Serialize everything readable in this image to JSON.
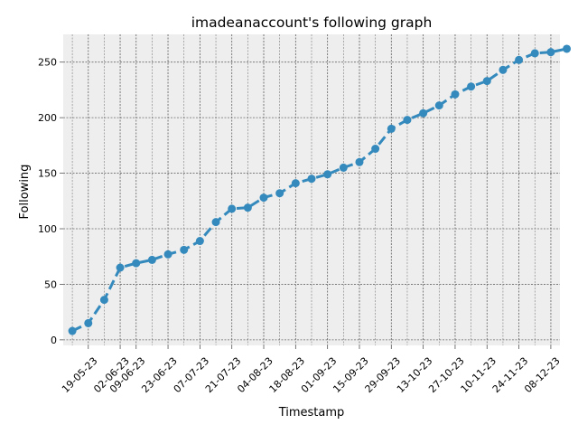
{
  "chart_data": {
    "type": "line",
    "title": "imadeanaccount's following graph",
    "xlabel": "Timestamp",
    "ylabel": "Following",
    "grid": true,
    "x_tick_labels": [
      "19-05-23",
      "02-06-23",
      "09-06-23",
      "23-06-23",
      "07-07-23",
      "21-07-23",
      "04-08-23",
      "18-08-23",
      "01-09-23",
      "15-09-23",
      "29-09-23",
      "13-10-23",
      "27-10-23",
      "10-11-23",
      "24-11-23",
      "08-12-23"
    ],
    "y_ticks": [
      0,
      50,
      100,
      150,
      200,
      250
    ],
    "xlim": [
      "2023-05-08",
      "2023-12-12"
    ],
    "ylim": [
      -5,
      275
    ],
    "series": [
      {
        "color": "#348abd",
        "line_style": "dashed",
        "marker": "circle",
        "points": [
          {
            "x": "2023-05-12",
            "y": 8
          },
          {
            "x": "2023-05-19",
            "y": 15
          },
          {
            "x": "2023-05-26",
            "y": 36
          },
          {
            "x": "2023-06-02",
            "y": 65
          },
          {
            "x": "2023-06-09",
            "y": 69
          },
          {
            "x": "2023-06-16",
            "y": 72
          },
          {
            "x": "2023-06-23",
            "y": 77
          },
          {
            "x": "2023-06-30",
            "y": 81
          },
          {
            "x": "2023-07-07",
            "y": 89
          },
          {
            "x": "2023-07-14",
            "y": 106
          },
          {
            "x": "2023-07-21",
            "y": 118
          },
          {
            "x": "2023-07-28",
            "y": 119
          },
          {
            "x": "2023-08-04",
            "y": 128
          },
          {
            "x": "2023-08-11",
            "y": 132
          },
          {
            "x": "2023-08-18",
            "y": 141
          },
          {
            "x": "2023-08-25",
            "y": 145
          },
          {
            "x": "2023-09-01",
            "y": 149
          },
          {
            "x": "2023-09-08",
            "y": 155
          },
          {
            "x": "2023-09-15",
            "y": 160
          },
          {
            "x": "2023-09-22",
            "y": 172
          },
          {
            "x": "2023-09-29",
            "y": 190
          },
          {
            "x": "2023-10-06",
            "y": 198
          },
          {
            "x": "2023-10-13",
            "y": 204
          },
          {
            "x": "2023-10-20",
            "y": 211
          },
          {
            "x": "2023-10-27",
            "y": 221
          },
          {
            "x": "2023-11-03",
            "y": 228
          },
          {
            "x": "2023-11-10",
            "y": 233
          },
          {
            "x": "2023-11-17",
            "y": 243
          },
          {
            "x": "2023-11-24",
            "y": 252
          },
          {
            "x": "2023-12-01",
            "y": 258
          },
          {
            "x": "2023-12-08",
            "y": 259
          },
          {
            "x": "2023-12-15",
            "y": 262
          }
        ]
      }
    ]
  }
}
